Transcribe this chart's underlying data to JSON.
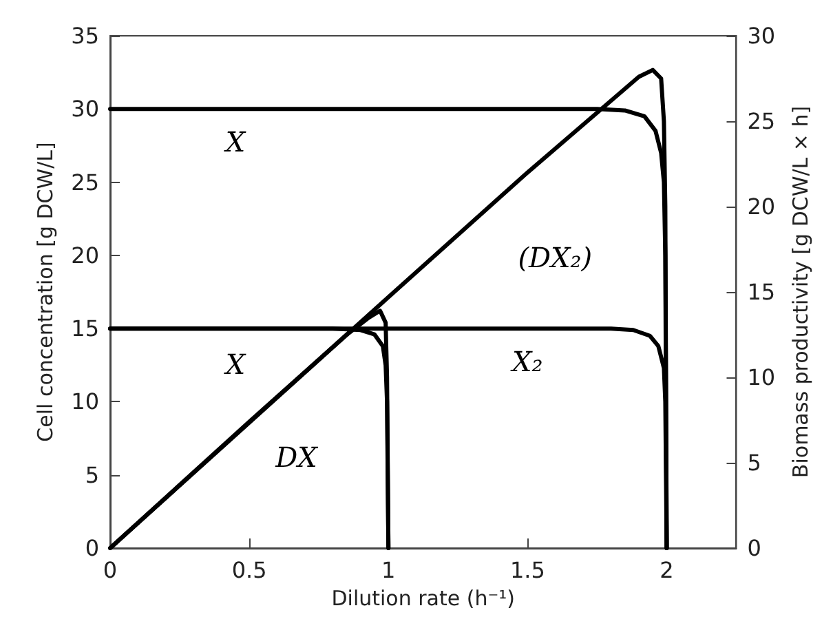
{
  "chart_data": {
    "type": "line",
    "xlabel": "Dilution rate (h⁻¹)",
    "ylabel": "Cell concentration [g DCW/L]",
    "y2label": "Biomass productivity [g DCW/L × h]",
    "xlim": [
      0,
      2.25
    ],
    "xticks": [
      0,
      0.5,
      1,
      1.5,
      2
    ],
    "ylim": [
      0,
      35
    ],
    "yticks": [
      0,
      5,
      10,
      15,
      20,
      25,
      30,
      35
    ],
    "y2lim": [
      0,
      30
    ],
    "y2ticks": [
      0,
      5,
      10,
      15,
      20,
      25,
      30
    ],
    "grid": false,
    "legend": false,
    "marker": "none",
    "line_style": "solid",
    "series": [
      {
        "name": "X",
        "color": "#000000",
        "x": [
          0,
          0.8,
          0.9,
          0.95,
          0.98,
          0.99,
          0.995,
          1
        ],
        "values": [
          15,
          15,
          14.9,
          14.6,
          13.8,
          12.5,
          10,
          0
        ]
      },
      {
        "name": "X",
        "color": "#000000",
        "x": [
          0,
          1.75,
          1.85,
          1.92,
          1.96,
          1.98,
          1.99,
          1.995,
          2
        ],
        "values": [
          30,
          30,
          29.9,
          29.5,
          28.5,
          27,
          25,
          20,
          0
        ]
      },
      {
        "name": "X₂",
        "color": "#000000",
        "x": [
          0,
          1.8,
          1.88,
          1.94,
          1.97,
          1.99,
          1.995,
          2
        ],
        "values": [
          15,
          15,
          14.9,
          14.5,
          13.8,
          12.3,
          10,
          0
        ]
      },
      {
        "name": "DX",
        "color": "#000000",
        "axis": "y2",
        "x": [
          0,
          0.5,
          0.85,
          0.93,
          0.97,
          0.99,
          0.995,
          1
        ],
        "values": [
          0,
          7.4,
          12.5,
          13.5,
          13.9,
          13.2,
          10,
          0
        ]
      },
      {
        "name": "(DX₂)",
        "color": "#000000",
        "axis": "y2",
        "x": [
          0,
          1,
          1.5,
          1.8,
          1.9,
          1.95,
          1.98,
          1.99,
          1.995,
          2
        ],
        "values": [
          0,
          14.7,
          22,
          26.2,
          27.6,
          28,
          27.5,
          25,
          20,
          0
        ]
      }
    ]
  }
}
